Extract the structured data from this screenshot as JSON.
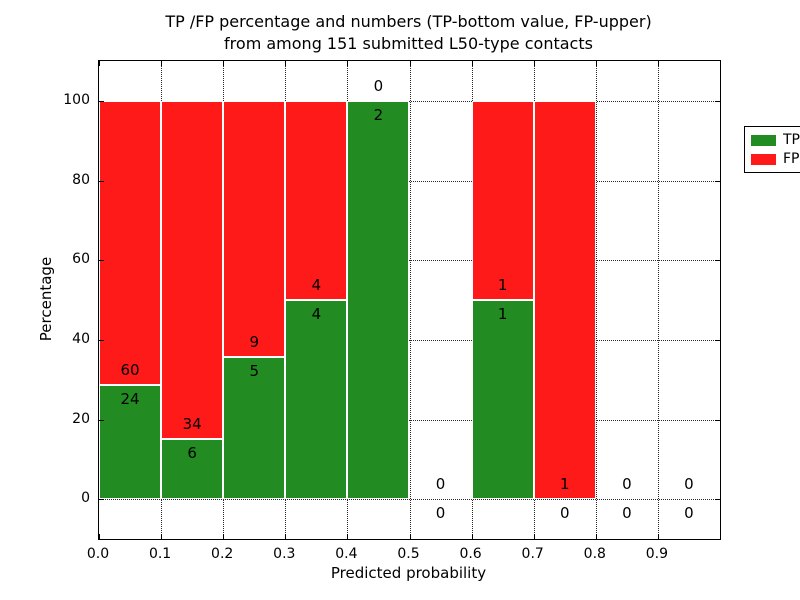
{
  "figure": {
    "title_line1": "TP /FP percentage and numbers (TP-bottom value, FP-upper)",
    "title_line2": "from among 151 submitted L50-type contacts"
  },
  "chart_data": {
    "type": "bar",
    "subtype": "stacked-percentage-histogram",
    "title": "TP /FP percentage and numbers (TP-bottom value, FP-upper) from among 151 submitted L50-type contacts",
    "xlabel": "Predicted probability",
    "ylabel": "Percentage",
    "xlim": [
      0.0,
      1.0
    ],
    "ylim": [
      -10,
      110
    ],
    "xtick_labels": [
      "0.0",
      "0.1",
      "0.2",
      "0.3",
      "0.4",
      "0.5",
      "0.6",
      "0.7",
      "0.8",
      "0.9"
    ],
    "xtick_values": [
      0.0,
      0.1,
      0.2,
      0.3,
      0.4,
      0.5,
      0.6,
      0.7,
      0.8,
      0.9
    ],
    "ytick_values": [
      0,
      20,
      40,
      60,
      80,
      100
    ],
    "grid": {
      "style": "dotted",
      "axes": "both",
      "color": "#000000"
    },
    "total_contacts": 151,
    "bins": [
      {
        "x0": 0.0,
        "x1": 0.1,
        "tp": 24,
        "fp": 60
      },
      {
        "x0": 0.1,
        "x1": 0.2,
        "tp": 6,
        "fp": 34
      },
      {
        "x0": 0.2,
        "x1": 0.3,
        "tp": 5,
        "fp": 9
      },
      {
        "x0": 0.3,
        "x1": 0.4,
        "tp": 4,
        "fp": 4
      },
      {
        "x0": 0.4,
        "x1": 0.5,
        "tp": 2,
        "fp": 0
      },
      {
        "x0": 0.5,
        "x1": 0.6,
        "tp": 0,
        "fp": 0
      },
      {
        "x0": 0.6,
        "x1": 0.7,
        "tp": 1,
        "fp": 1
      },
      {
        "x0": 0.7,
        "x1": 0.8,
        "tp": 0,
        "fp": 1
      },
      {
        "x0": 0.8,
        "x1": 0.9,
        "tp": 0,
        "fp": 0
      },
      {
        "x0": 0.9,
        "x1": 1.0,
        "tp": 0,
        "fp": 0
      }
    ],
    "bar_label_rule": "FP count printed just above the green/red boundary, TP count just below it",
    "colors": {
      "tp": "#228b22",
      "fp": "#ff1a1a",
      "bar_edge": "#ffffff",
      "text": "#000000",
      "spine": "#000000"
    },
    "legend": {
      "position": "upper right",
      "entries": [
        {
          "label": "TP",
          "color": "#228b22"
        },
        {
          "label": "FP",
          "color": "#ff1a1a"
        }
      ]
    }
  }
}
